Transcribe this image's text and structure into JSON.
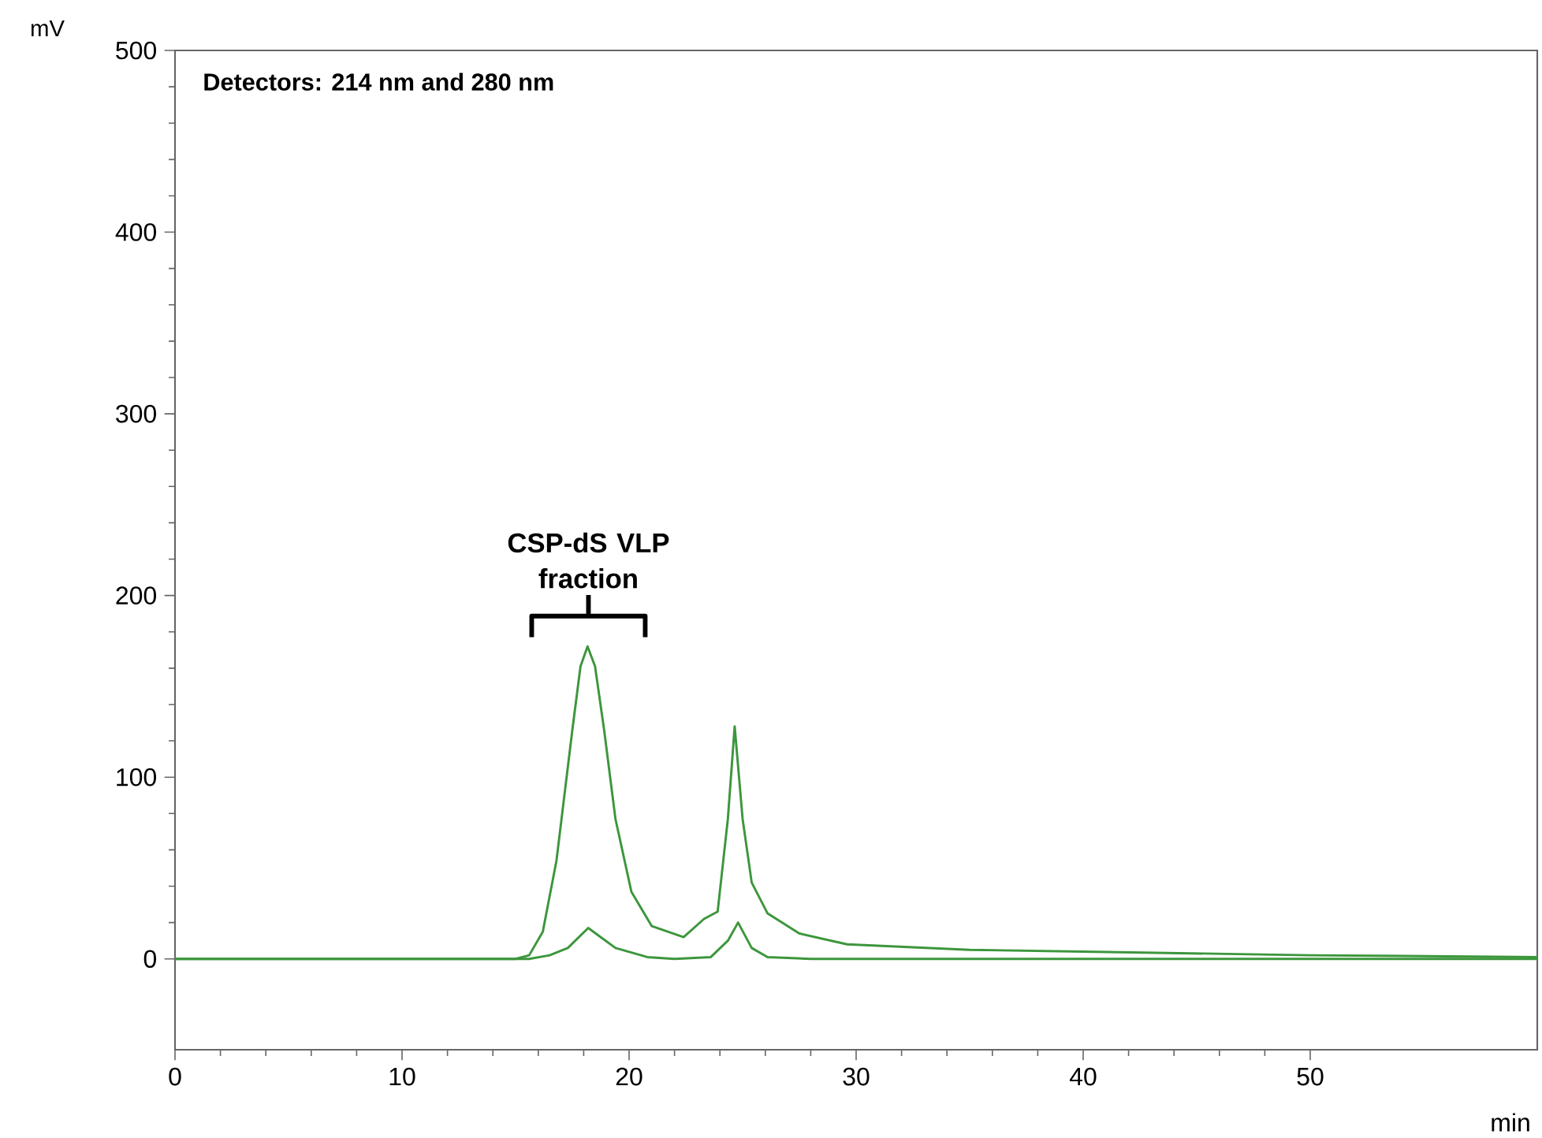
{
  "chart_data": {
    "type": "line",
    "title": "Detectors: 214 nm and 280 nm",
    "xlabel": "min",
    "ylabel": "mV",
    "xlim": [
      0,
      60
    ],
    "ylim": [
      -50,
      500
    ],
    "xticks": [
      0,
      10,
      20,
      30,
      40,
      50
    ],
    "yticks": [
      0,
      100,
      200,
      300,
      400,
      500
    ],
    "marker": "none",
    "line_style": "solid",
    "series": [
      {
        "color": "#3c963c",
        "x": [
          0,
          10,
          15,
          15.6,
          16.2,
          16.8,
          17.5,
          17.86,
          18.17,
          18.5,
          18.9,
          19.4,
          20.1,
          21.0,
          22.4,
          23.3,
          23.9,
          24.35,
          24.65,
          25.0,
          25.4,
          26.1,
          27.5,
          29.6,
          35,
          40,
          50,
          60
        ],
        "values": [
          0,
          0,
          0,
          2,
          15,
          54,
          126,
          161,
          172,
          161,
          126,
          77,
          37,
          18,
          12,
          22,
          26,
          77,
          128,
          77,
          42,
          25,
          14,
          8,
          5,
          4,
          2,
          1
        ]
      },
      {
        "color": "#3c963c",
        "x": [
          0,
          15,
          15.6,
          16.5,
          17.3,
          18.2,
          19.4,
          20.8,
          22,
          23.6,
          24.35,
          24.8,
          25.4,
          26.1,
          28,
          60
        ],
        "values": [
          0,
          0,
          0,
          2,
          6,
          17,
          6,
          1,
          0,
          1,
          10,
          20,
          6,
          1,
          0,
          0
        ]
      }
    ],
    "annotations": [
      "CSP-dS VLP fraction"
    ]
  }
}
